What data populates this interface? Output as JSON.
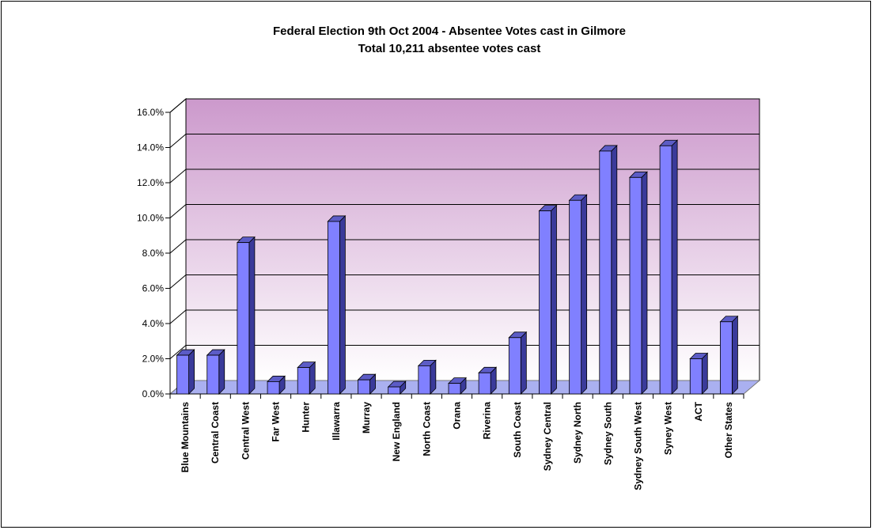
{
  "chart_data": {
    "type": "bar",
    "title": "Federal Election 9th Oct 2004 - Absentee Votes cast in Gilmore",
    "subtitle": "Total 10,211 absentee votes cast",
    "xlabel": "",
    "ylabel": "",
    "ylim": [
      0,
      16
    ],
    "y_ticks": [
      0,
      2,
      4,
      6,
      8,
      10,
      12,
      14,
      16
    ],
    "y_tick_labels": [
      "0.0%",
      "2.0%",
      "4.0%",
      "6.0%",
      "8.0%",
      "10.0%",
      "12.0%",
      "14.0%",
      "16.0%"
    ],
    "grid": true,
    "legend": "none",
    "categories": [
      "Blue Mountains",
      "Central Coast",
      "Central West",
      "Far West",
      "Hunter",
      "Illawarra",
      "Murray",
      "New England",
      "North Coast",
      "Orana",
      "Riverina",
      "South Coast",
      "Sydney Central",
      "Sydney North",
      "Sydney South",
      "Sydney South West",
      "Syney West",
      "ACT",
      "Other States"
    ],
    "values": [
      2.2,
      2.2,
      8.6,
      0.7,
      1.5,
      9.8,
      0.8,
      0.4,
      1.6,
      0.6,
      1.2,
      3.2,
      10.4,
      11.0,
      13.8,
      12.3,
      14.1,
      2.0,
      4.1
    ],
    "unit": "%",
    "colors": {
      "bar_front": "#8080ff",
      "bar_side": "#3a3a9a",
      "bar_top": "#5c5cc6",
      "wall_top": "#cc99cc",
      "wall_bottom": "#ffffff",
      "floor": "#aab0f0"
    }
  }
}
